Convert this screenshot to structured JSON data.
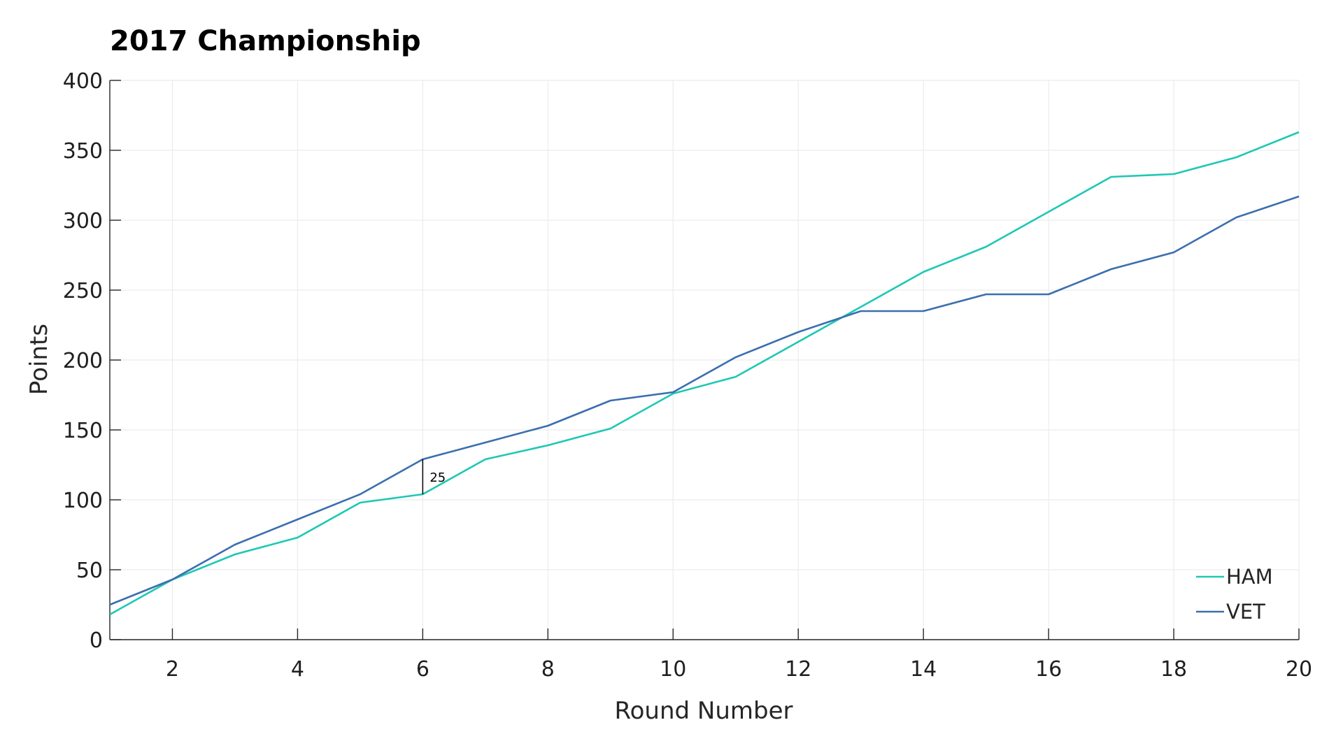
{
  "chart_data": {
    "type": "line",
    "title": "2017 Championship",
    "xlabel": "Round Number",
    "ylabel": "Points",
    "xlim": [
      1,
      20
    ],
    "ylim": [
      0,
      400
    ],
    "xticks": [
      2,
      4,
      6,
      8,
      10,
      12,
      14,
      16,
      18,
      20
    ],
    "yticks": [
      0,
      50,
      100,
      150,
      200,
      250,
      300,
      350,
      400
    ],
    "grid": true,
    "legend_position": "bottom-right",
    "x": [
      1,
      2,
      3,
      4,
      5,
      6,
      7,
      8,
      9,
      10,
      11,
      12,
      13,
      14,
      15,
      16,
      17,
      18,
      19,
      20
    ],
    "series": [
      {
        "name": "HAM",
        "color": "#1ec8b4",
        "values": [
          18,
          43,
          61,
          73,
          98,
          104,
          129,
          139,
          151,
          176,
          188,
          213,
          238,
          263,
          281,
          306,
          331,
          333,
          345,
          363
        ]
      },
      {
        "name": "VET",
        "color": "#3b6fae",
        "values": [
          25,
          43,
          68,
          86,
          104,
          129,
          141,
          153,
          171,
          177,
          202,
          220,
          235,
          235,
          247,
          247,
          265,
          277,
          302,
          317
        ]
      }
    ],
    "annotations": [
      {
        "x": 6,
        "y_from": 104,
        "y_to": 129,
        "label": "25"
      }
    ]
  }
}
